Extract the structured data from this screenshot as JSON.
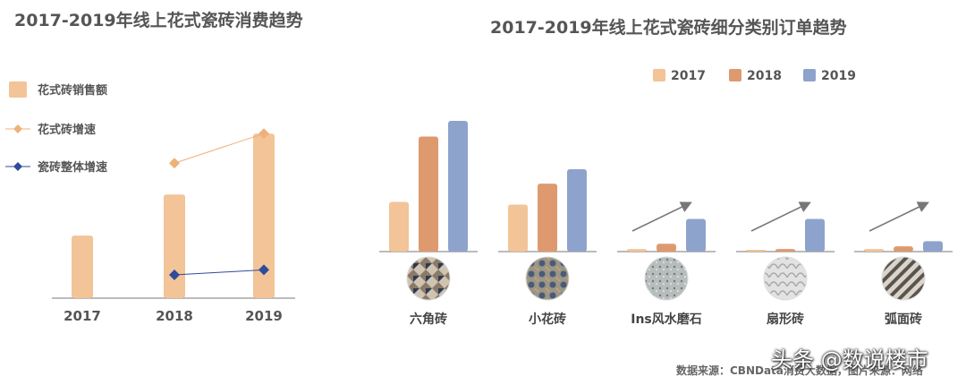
{
  "chart_data": [
    {
      "type": "bar",
      "title": "2017-2019年线上花式瓷砖消费趋势",
      "categories": [
        "2017",
        "2018",
        "2019"
      ],
      "series": [
        {
          "name": "花式砖销售额",
          "type": "bar",
          "color": "#F2C497",
          "values": [
            0.38,
            0.63,
            1.0
          ]
        },
        {
          "name": "花式砖增速",
          "type": "line",
          "color": "#F0B07A",
          "values": [
            null,
            0.82,
            1.0
          ]
        },
        {
          "name": "瓷砖整体增速",
          "type": "line",
          "color": "#2F4B9B",
          "values": [
            null,
            0.12,
            0.15
          ]
        }
      ],
      "ylim": [
        0,
        1.05
      ],
      "legend": "left"
    },
    {
      "type": "bar",
      "title": "2017-2019年线上花式瓷砖细分类别订单趋势",
      "categories": [
        "六角砖",
        "小花砖",
        "Ins风水磨石",
        "扇形砖",
        "弧面砖"
      ],
      "series": [
        {
          "name": "2017",
          "color": "#F2C497",
          "values": [
            0.38,
            0.36,
            0.02,
            0.01,
            0.02
          ]
        },
        {
          "name": "2018",
          "color": "#DE9A6E",
          "values": [
            0.88,
            0.52,
            0.06,
            0.02,
            0.04
          ]
        },
        {
          "name": "2019",
          "color": "#8EA3CC",
          "values": [
            1.0,
            0.63,
            0.25,
            0.25,
            0.08
          ]
        }
      ],
      "trend_arrows": [
        "Ins风水磨石",
        "扇形砖",
        "弧面砖"
      ],
      "ylim": [
        0,
        1.0
      ],
      "legend": "top-right"
    }
  ],
  "footer": {
    "source": "数据来源：CBNData消费大数据，图片来源：网络",
    "watermark": "头条 @数说楼市"
  }
}
